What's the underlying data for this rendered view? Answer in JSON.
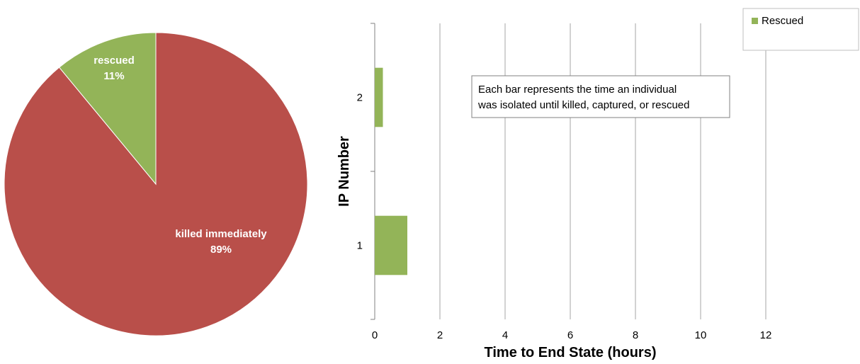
{
  "chart_data": [
    {
      "type": "pie",
      "slices": [
        {
          "label": "killed immediately",
          "value": 89,
          "value_label": "89%",
          "color": "#b94f4a"
        },
        {
          "label": "rescued",
          "value": 11,
          "value_label": "11%",
          "color": "#93b458"
        }
      ],
      "start_angle_deg": 0,
      "direction": "clockwise_from_top"
    },
    {
      "type": "bar",
      "orientation": "horizontal",
      "categories": [
        "1",
        "2"
      ],
      "series": [
        {
          "name": "Rescued",
          "values": [
            1.0,
            0.25
          ],
          "color": "#93b458"
        }
      ],
      "xlabel": "Time to End State (hours)",
      "ylabel": "IP Number",
      "xlim": [
        0,
        12
      ],
      "xticks": [
        "0",
        "2",
        "4",
        "6",
        "8",
        "10",
        "12"
      ],
      "grid": true,
      "legend": "top-right",
      "annotation": {
        "line1": "Each bar represents the time an individual",
        "line2": "was isolated until killed, captured, or rescued"
      }
    }
  ]
}
